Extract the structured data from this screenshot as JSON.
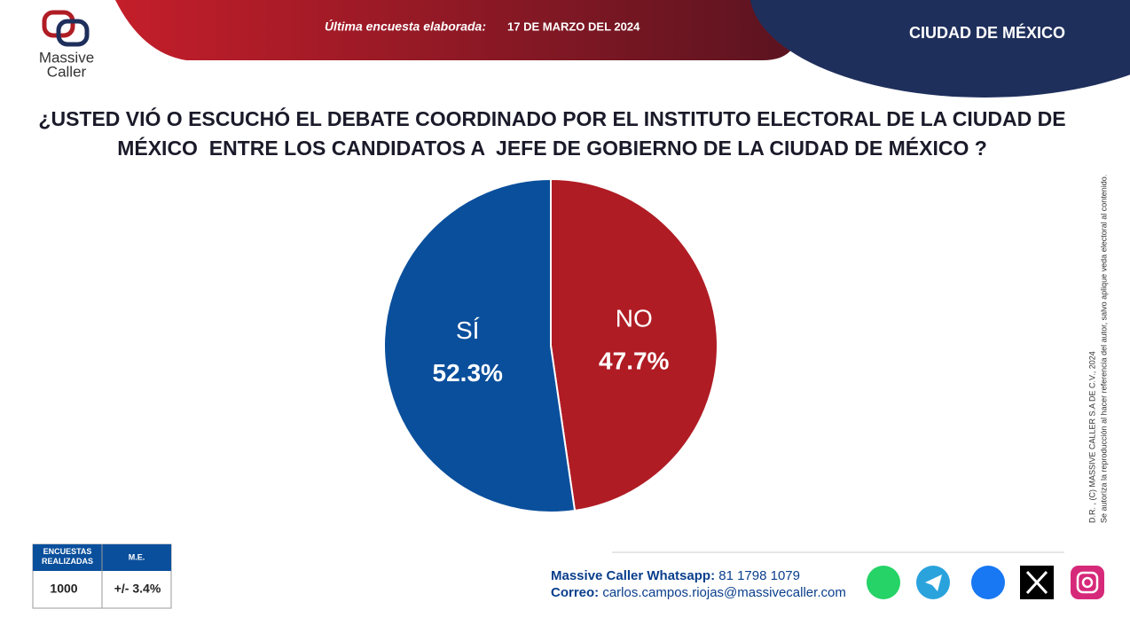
{
  "logo": {
    "line1": "Massive",
    "line2": "Caller"
  },
  "header": {
    "date_label": "Última encuesta elaborada:",
    "date": "17 DE MARZO DEL 2024",
    "region": "CIUDAD DE MÉXICO"
  },
  "chart_data": {
    "type": "pie",
    "title": "¿USTED VIÓ O ESCUCHÓ EL DEBATE COORDINADO POR EL INSTITUTO ELECTORAL DE LA CIUDAD DE MÉXICO  ENTRE LOS CANDIDATOS A  JEFE DE GOBIERNO DE LA CIUDAD DE MÉXICO ?",
    "categories": [
      "NO",
      "SÍ"
    ],
    "values": [
      47.7,
      52.3
    ],
    "value_labels": [
      "47.7%",
      "52.3%"
    ],
    "colors": [
      "#b01c24",
      "#0a4f9c"
    ]
  },
  "side_note": [
    "D.R. , (C) MASSIVE CALLER S.A DE C.V.,  2024",
    "Se autoriza la reproducción al hacer referencia del autor, salvo aplique veda electoral al contenido."
  ],
  "table": {
    "headers": [
      "ENCUESTAS REALIZADAS",
      "M.E."
    ],
    "row": [
      1000,
      "+/- 3.4%"
    ]
  },
  "contact": {
    "whatsapp_label": "Massive Caller Whatsapp:",
    "whatsapp": "81 1798 1079",
    "email_label": "Correo:",
    "email": "carlos.campos.riojas@massivecaller.com"
  }
}
